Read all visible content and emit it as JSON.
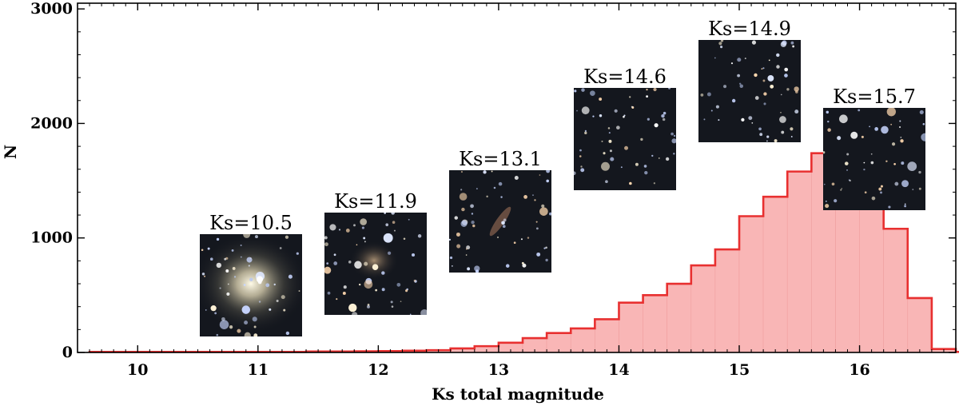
{
  "chart_data": {
    "type": "bar",
    "subtype": "histogram",
    "xlabel": "Ks total magnitude",
    "ylabel": "N",
    "xlim": [
      9.5,
      16.8
    ],
    "ylim": [
      0,
      3050
    ],
    "x_ticks": [
      10,
      11,
      12,
      13,
      14,
      15,
      16
    ],
    "y_ticks": [
      0,
      1000,
      2000,
      3000
    ],
    "bin_width": 0.2,
    "bin_edges_start": 9.6,
    "values": [
      5,
      5,
      5,
      5,
      5,
      5,
      5,
      5,
      5,
      8,
      8,
      10,
      12,
      15,
      20,
      35,
      55,
      85,
      125,
      170,
      210,
      290,
      435,
      500,
      600,
      760,
      900,
      1190,
      1360,
      1580,
      1740,
      1755,
      1640,
      1080,
      475,
      30,
      5,
      5,
      5,
      5,
      5
    ],
    "fill_color": "#f9b6b6",
    "edge_color": "#e83030",
    "grid": false,
    "insets": [
      {
        "label": "Ks=10.5",
        "style": "elliptical-galaxy"
      },
      {
        "label": "Ks=11.9",
        "style": "faint-galaxy"
      },
      {
        "label": "Ks=13.1",
        "style": "edge-on-galaxy"
      },
      {
        "label": "Ks=14.6",
        "style": "star-field"
      },
      {
        "label": "Ks=14.9",
        "style": "star-field"
      },
      {
        "label": "Ks=15.7",
        "style": "star-field"
      }
    ]
  }
}
